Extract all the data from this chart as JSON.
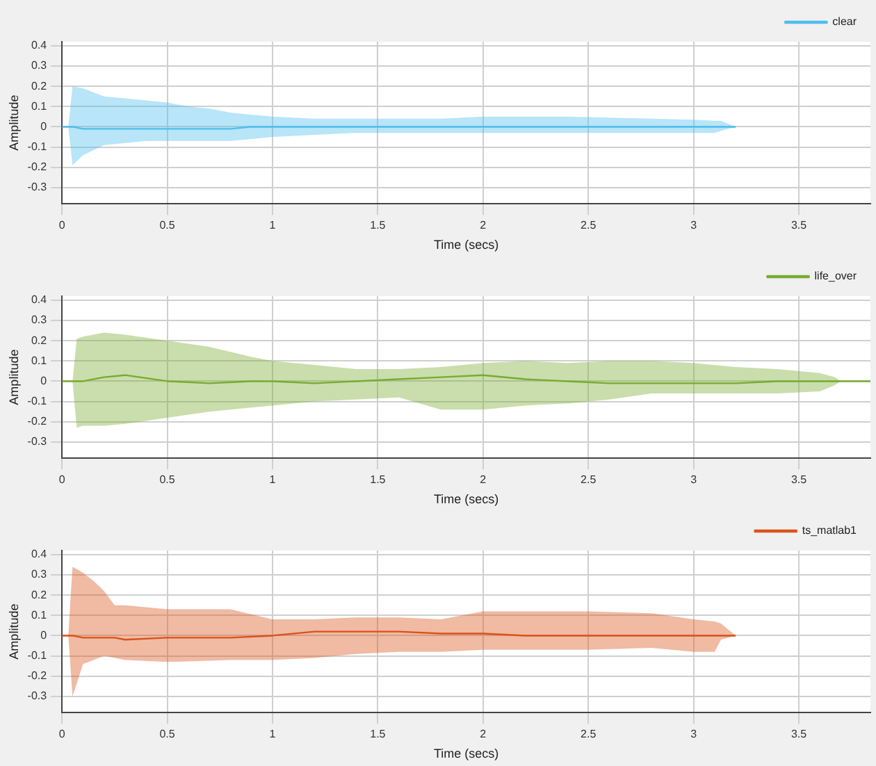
{
  "chart_data": [
    {
      "type": "line",
      "xlabel": "Time (secs)",
      "ylabel": "Amplitude",
      "xlim": [
        0,
        3.84
      ],
      "ylim": [
        -0.38,
        0.42
      ],
      "xticks": [
        0,
        0.5,
        1,
        1.5,
        2,
        2.5,
        3,
        3.5
      ],
      "yticks": [
        -0.3,
        -0.2,
        -0.1,
        0,
        0.1,
        0.2,
        0.3,
        0.4
      ],
      "grid": true,
      "legend": "top right",
      "x": [
        0,
        0.03,
        0.05,
        0.1,
        0.2,
        0.3,
        0.4,
        0.5,
        0.6,
        0.7,
        0.8,
        0.9,
        1.0,
        1.2,
        1.4,
        1.6,
        1.8,
        2.0,
        2.2,
        2.4,
        2.6,
        2.8,
        3.0,
        3.1,
        3.13,
        3.2
      ],
      "series": [
        {
          "name": "clear",
          "color": "#4dbeee",
          "values": [
            0,
            0,
            0,
            -0.01,
            -0.01,
            -0.01,
            -0.01,
            -0.01,
            -0.01,
            -0.01,
            -0.01,
            0,
            0,
            0,
            0,
            0,
            0,
            0,
            0,
            0,
            0,
            0,
            0,
            0,
            0,
            0
          ],
          "upper": [
            0,
            0,
            0.2,
            0.19,
            0.15,
            0.14,
            0.13,
            0.12,
            0.1,
            0.09,
            0.07,
            0.06,
            0.05,
            0.04,
            0.04,
            0.04,
            0.04,
            0.05,
            0.05,
            0.05,
            0.045,
            0.04,
            0.035,
            0.03,
            0.03,
            0
          ],
          "lower": [
            0,
            0,
            -0.19,
            -0.14,
            -0.09,
            -0.08,
            -0.07,
            -0.07,
            -0.07,
            -0.07,
            -0.07,
            -0.06,
            -0.05,
            -0.04,
            -0.03,
            -0.03,
            -0.03,
            -0.03,
            -0.03,
            -0.03,
            -0.03,
            -0.03,
            -0.03,
            -0.03,
            -0.02,
            0
          ]
        }
      ]
    },
    {
      "type": "line",
      "xlabel": "Time (secs)",
      "ylabel": "Amplitude",
      "xlim": [
        0,
        3.84
      ],
      "ylim": [
        -0.38,
        0.42
      ],
      "xticks": [
        0,
        0.5,
        1,
        1.5,
        2,
        2.5,
        3,
        3.5
      ],
      "yticks": [
        -0.3,
        -0.2,
        -0.1,
        0,
        0.1,
        0.2,
        0.3,
        0.4
      ],
      "grid": true,
      "legend": "top right",
      "x": [
        0,
        0.05,
        0.07,
        0.1,
        0.2,
        0.3,
        0.5,
        0.7,
        0.9,
        1.0,
        1.2,
        1.4,
        1.6,
        1.8,
        2.0,
        2.2,
        2.4,
        2.6,
        2.8,
        3.0,
        3.2,
        3.4,
        3.6,
        3.67,
        3.7,
        3.84
      ],
      "series": [
        {
          "name": "life_over",
          "color": "#77ac30",
          "values": [
            0,
            0,
            0,
            0,
            0.02,
            0.03,
            0,
            -0.01,
            0,
            0,
            -0.01,
            0,
            0.01,
            0.02,
            0.03,
            0.01,
            0,
            -0.01,
            -0.01,
            -0.01,
            -0.01,
            0,
            0,
            0,
            0,
            0
          ],
          "upper": [
            0,
            0,
            0.21,
            0.22,
            0.24,
            0.23,
            0.2,
            0.17,
            0.12,
            0.1,
            0.08,
            0.06,
            0.06,
            0.07,
            0.09,
            0.1,
            0.09,
            0.1,
            0.1,
            0.09,
            0.07,
            0.06,
            0.04,
            0.02,
            0,
            0
          ],
          "lower": [
            0,
            0,
            -0.23,
            -0.22,
            -0.22,
            -0.21,
            -0.18,
            -0.15,
            -0.13,
            -0.12,
            -0.1,
            -0.09,
            -0.08,
            -0.14,
            -0.14,
            -0.12,
            -0.11,
            -0.09,
            -0.06,
            -0.06,
            -0.06,
            -0.06,
            -0.05,
            -0.02,
            0,
            0
          ]
        }
      ]
    },
    {
      "type": "line",
      "xlabel": "Time (secs)",
      "ylabel": "Amplitude",
      "xlim": [
        0,
        3.84
      ],
      "ylim": [
        -0.38,
        0.42
      ],
      "xticks": [
        0,
        0.5,
        1,
        1.5,
        2,
        2.5,
        3,
        3.5
      ],
      "yticks": [
        -0.3,
        -0.2,
        -0.1,
        0,
        0.1,
        0.2,
        0.3,
        0.4
      ],
      "grid": true,
      "legend": "top right",
      "x": [
        0,
        0.03,
        0.05,
        0.1,
        0.15,
        0.2,
        0.25,
        0.3,
        0.5,
        0.8,
        1.0,
        1.2,
        1.4,
        1.6,
        1.8,
        2.0,
        2.2,
        2.5,
        2.8,
        3.0,
        3.1,
        3.13,
        3.2
      ],
      "series": [
        {
          "name": "ts_matlab1",
          "color": "#d95319",
          "values": [
            0,
            0,
            0,
            -0.01,
            -0.01,
            -0.01,
            -0.01,
            -0.02,
            -0.01,
            -0.01,
            0,
            0.02,
            0.02,
            0.02,
            0.01,
            0.01,
            0,
            0,
            0,
            0,
            0,
            0,
            0
          ],
          "upper": [
            0,
            0,
            0.34,
            0.31,
            0.27,
            0.22,
            0.15,
            0.15,
            0.13,
            0.13,
            0.08,
            0.08,
            0.09,
            0.09,
            0.08,
            0.12,
            0.12,
            0.12,
            0.11,
            0.08,
            0.07,
            0.06,
            0
          ],
          "lower": [
            0,
            0,
            -0.3,
            -0.14,
            -0.12,
            -0.1,
            -0.11,
            -0.12,
            -0.13,
            -0.12,
            -0.12,
            -0.11,
            -0.09,
            -0.08,
            -0.08,
            -0.07,
            -0.07,
            -0.07,
            -0.06,
            -0.08,
            -0.08,
            -0.02,
            0
          ]
        }
      ]
    }
  ]
}
